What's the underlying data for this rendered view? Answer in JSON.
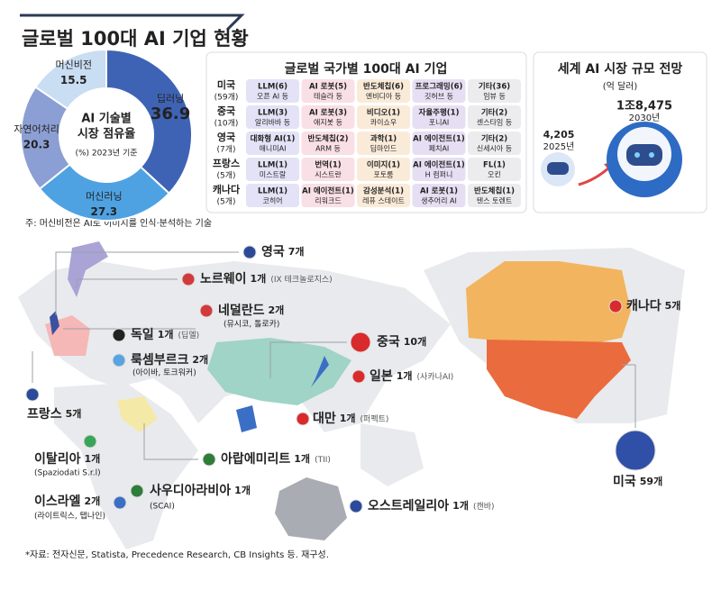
{
  "title": "글로벌 100대 AI 기업 현황",
  "chart_data": {
    "type": "pie",
    "title_lines": [
      "AI 기술별",
      "시장 점유율"
    ],
    "subtitle": "(%) 2023년 기준",
    "categories": [
      "딥러닝",
      "머신러닝",
      "자연어처리",
      "머신비전"
    ],
    "values": [
      36.9,
      27.3,
      20.3,
      15.5
    ],
    "colors": [
      "#3f63b4",
      "#4fa2e2",
      "#8c9fd4",
      "#c9ddf3"
    ]
  },
  "note": "주: 머신비전은 AI로 이미지를 인식·분석하는 기술",
  "table": {
    "title": "글로벌 국가별 100대 AI 기업",
    "rows": [
      {
        "country": "미국",
        "count": "(59개)",
        "cells": [
          [
            "LLM(6)",
            "오픈 AI 등"
          ],
          [
            "AI 로봇(5)",
            "테슬라 등"
          ],
          [
            "반도체칩(6)",
            "엔비디아 등"
          ],
          [
            "프로그래밍(6)",
            "깃허브 등"
          ],
          [
            "기타(36)",
            "임뷰 등"
          ]
        ]
      },
      {
        "country": "중국",
        "count": "(10개)",
        "cells": [
          [
            "LLM(3)",
            "알리바바 등"
          ],
          [
            "AI 로봇(3)",
            "애지봇 등"
          ],
          [
            "비디오(1)",
            "콰이쇼우"
          ],
          [
            "자율주행(1)",
            "포니AI"
          ],
          [
            "기타(2)",
            "센스타임 등"
          ]
        ]
      },
      {
        "country": "영국",
        "count": "(7개)",
        "cells": [
          [
            "대화형 AI(1)",
            "애니미AI"
          ],
          [
            "반도체칩(2)",
            "ARM 등"
          ],
          [
            "과학(1)",
            "딥마인드"
          ],
          [
            "AI 에이전트(1)",
            "페치AI"
          ],
          [
            "기타(2)",
            "신세시아 등"
          ]
        ]
      },
      {
        "country": "프랑스",
        "count": "(5개)",
        "cells": [
          [
            "LLM(1)",
            "미스트랄"
          ],
          [
            "번역(1)",
            "시스트란"
          ],
          [
            "이미지(1)",
            "포토룸"
          ],
          [
            "AI 에이전트(1)",
            "H 컴퍼니"
          ],
          [
            "FL(1)",
            "오킨"
          ]
        ]
      },
      {
        "country": "캐나다",
        "count": "(5개)",
        "cells": [
          [
            "LLM(1)",
            "코히어"
          ],
          [
            "AI 에이전트(1)",
            "리워크드"
          ],
          [
            "감성분석(1)",
            "레퓨 스테이트"
          ],
          [
            "AI 로봇(1)",
            "생추어리 AI"
          ],
          [
            "반도체칩(1)",
            "텐스 토렌트"
          ]
        ]
      }
    ]
  },
  "market": {
    "title": "세계 AI 시장 규모 전망",
    "unit": "(억 달러)",
    "points": [
      {
        "value": "4,205",
        "year": "2025년"
      },
      {
        "value": "1조8,475",
        "year": "2030년"
      }
    ]
  },
  "map": {
    "labels": [
      {
        "name": "영국",
        "count": "7개"
      },
      {
        "name": "노르웨이",
        "count": "1개",
        "sub": "(IX 테크놀로지스)"
      },
      {
        "name": "네덜란드",
        "count": "2개",
        "sub": "(뮤시코, 톨로카)"
      },
      {
        "name": "독일",
        "count": "1개",
        "sub": "(딥엘)"
      },
      {
        "name": "룩셈부르크",
        "count": "2개",
        "sub": "(아이바, 토크워커)"
      },
      {
        "name": "프랑스",
        "count": "5개"
      },
      {
        "name": "이탈리아",
        "count": "1개",
        "sub": "(Spaziodati S.r.l)"
      },
      {
        "name": "이스라엘",
        "count": "2개",
        "sub": "(라이트릭스, 탭나인)"
      },
      {
        "name": "사우디아라비아",
        "count": "1개",
        "sub": "(SCAI)"
      },
      {
        "name": "아랍에미리트",
        "count": "1개",
        "sub": "(TII)"
      },
      {
        "name": "중국",
        "count": "10개"
      },
      {
        "name": "일본",
        "count": "1개",
        "sub": "(사카나AI)"
      },
      {
        "name": "대만",
        "count": "1개",
        "sub": "(퍼펙트)"
      },
      {
        "name": "오스트레일리아",
        "count": "1개",
        "sub": "(캔바)"
      },
      {
        "name": "캐나다",
        "count": "5개"
      },
      {
        "name": "미국",
        "count": "59개"
      }
    ]
  },
  "source": "*자료: 전자신문, Statista, Precedence Research, CB Insights 등. 재구성."
}
